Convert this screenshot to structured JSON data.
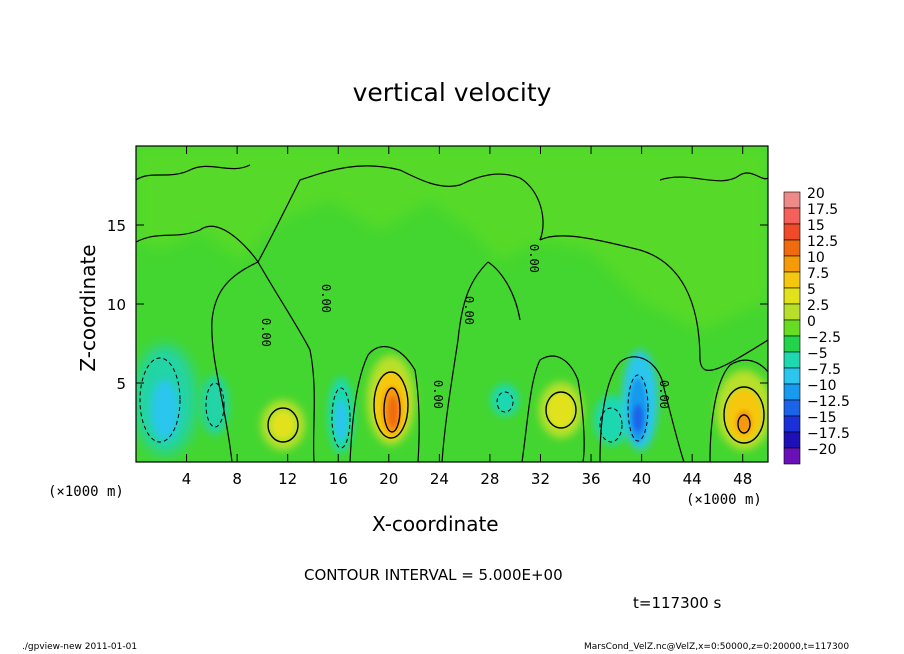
{
  "chart_data": {
    "type": "heatmap",
    "title": "vertical velocity",
    "xlabel": "X-coordinate",
    "ylabel": "Z-coordinate",
    "x_unit": "(×1000 m)",
    "x_unit_right": "(×1000 m)",
    "xlim": [
      0,
      50
    ],
    "ylim": [
      0,
      20
    ],
    "x_ticks": [
      4,
      8,
      12,
      16,
      20,
      24,
      28,
      32,
      36,
      40,
      44,
      48
    ],
    "y_ticks": [
      5,
      10,
      15
    ],
    "colorbar": {
      "levels": [
        "20",
        "17.5",
        "15",
        "12.5",
        "10",
        "7.5",
        "5",
        "2.5",
        "0",
        "-2.5",
        "-5",
        "-7.5",
        "-10",
        "-12.5",
        "-15",
        "-17.5",
        "-20"
      ],
      "colors": [
        "#ef8a8a",
        "#f5605a",
        "#f04a28",
        "#f06a10",
        "#f59a08",
        "#f5c80f",
        "#e2e21a",
        "#b8e02a",
        "#66dd22",
        "#22d44a",
        "#1ed8b0",
        "#2ac6ee",
        "#189aee",
        "#1a64ea",
        "#1a30d8",
        "#1e10b8",
        "#6a10b8"
      ]
    },
    "contour_interval": "CONTOUR INTERVAL = 5.000E+00",
    "contour_labels": [
      "0.00",
      "0.00",
      "0.00",
      "0.00",
      "0.00",
      "0.00"
    ],
    "features": [
      {
        "x": 20.5,
        "z": 3.5,
        "value": 12.5
      },
      {
        "x": 48,
        "z": 3,
        "value": 10
      },
      {
        "x": 33.5,
        "z": 3.5,
        "value": 7.5
      },
      {
        "x": 11.5,
        "z": 2.5,
        "value": 5
      },
      {
        "x": 39.5,
        "z": 3.5,
        "value": -10
      },
      {
        "x": 2.5,
        "z": 4,
        "value": -5
      },
      {
        "x": 16,
        "z": 3,
        "value": -5
      }
    ],
    "time_label": "t=117300 s"
  },
  "footer": {
    "left": "./gpview-new   2011-01-01",
    "right": "MarsCond_VelZ.nc@VelZ,x=0:50000,z=0:20000,t=117300"
  }
}
